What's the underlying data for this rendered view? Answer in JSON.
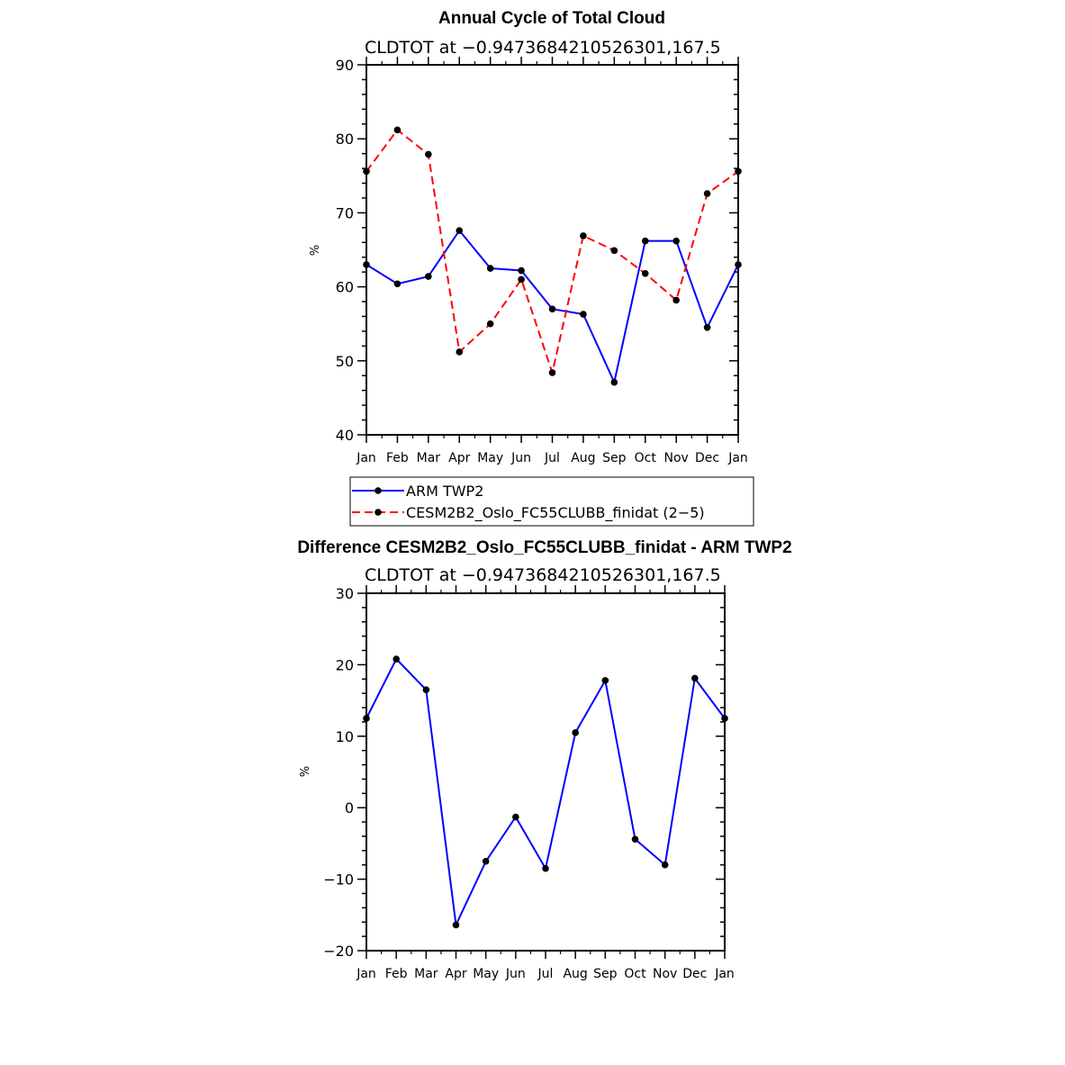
{
  "chart_data": [
    {
      "type": "line",
      "title": "Annual Cycle of Total Cloud",
      "subtitle": "CLDTOT at −0.9473684210526301,167.5",
      "xlabel": "",
      "ylabel": "%",
      "ylim": [
        40,
        90
      ],
      "yticks": [
        "40",
        "50",
        "60",
        "70",
        "80",
        "90"
      ],
      "categories": [
        "Jan",
        "Feb",
        "Mar",
        "Apr",
        "May",
        "Jun",
        "Jul",
        "Aug",
        "Sep",
        "Oct",
        "Nov",
        "Dec",
        "Jan"
      ],
      "series": [
        {
          "name": "ARM TWP2",
          "color": "#0000ff",
          "dash": "solid",
          "values": [
            63.0,
            60.4,
            61.4,
            67.6,
            62.5,
            62.2,
            57.0,
            56.3,
            47.1,
            66.2,
            66.2,
            54.5,
            63.0
          ]
        },
        {
          "name": "CESM2B2_Oslo_FC55CLUBB_finidat (2−5)",
          "color": "#ff0000",
          "dash": "dashed",
          "values": [
            75.6,
            81.2,
            77.9,
            51.2,
            55.0,
            61.0,
            48.4,
            66.9,
            64.9,
            61.8,
            58.2,
            72.6,
            75.6
          ]
        }
      ],
      "legend": "below"
    },
    {
      "type": "line",
      "title": "Difference CESM2B2_Oslo_FC55CLUBB_finidat - ARM TWP2",
      "subtitle": "CLDTOT at −0.9473684210526301,167.5",
      "xlabel": "",
      "ylabel": "%",
      "ylim": [
        -20,
        30
      ],
      "yticks": [
        "−20",
        "−10",
        "0",
        "10",
        "20",
        "30"
      ],
      "categories": [
        "Jan",
        "Feb",
        "Mar",
        "Apr",
        "May",
        "Jun",
        "Jul",
        "Aug",
        "Sep",
        "Oct",
        "Nov",
        "Dec",
        "Jan"
      ],
      "series": [
        {
          "color": "#0000ff",
          "dash": "solid",
          "values": [
            12.5,
            20.8,
            16.5,
            -16.4,
            -7.5,
            -1.3,
            -8.5,
            10.5,
            17.8,
            -4.4,
            -8.0,
            18.1,
            12.5
          ]
        }
      ]
    }
  ]
}
